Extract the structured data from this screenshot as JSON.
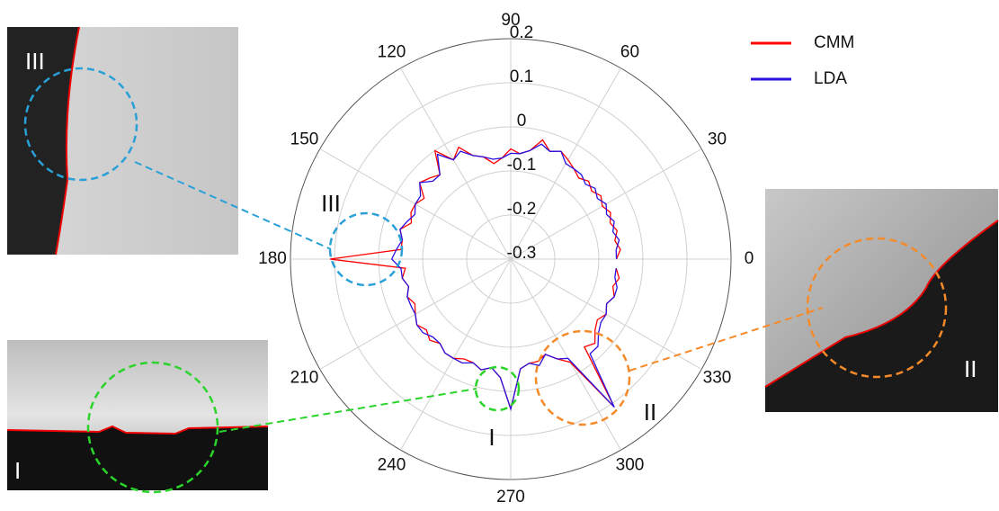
{
  "chart_data": {
    "type": "polar",
    "x": [
      0,
      5,
      10,
      15,
      20,
      25,
      30,
      35,
      40,
      45,
      50,
      55,
      60,
      65,
      70,
      75,
      80,
      85,
      90,
      95,
      100,
      105,
      110,
      115,
      120,
      125,
      130,
      135,
      140,
      145,
      150,
      155,
      160,
      165,
      170,
      175,
      180,
      185,
      190,
      195,
      200,
      205,
      210,
      215,
      220,
      225,
      230,
      235,
      240,
      245,
      250,
      255,
      260,
      265,
      270,
      275,
      280,
      285,
      290,
      295,
      300,
      305,
      310,
      315,
      320,
      325,
      330,
      335,
      340,
      345,
      350,
      355
    ],
    "series": [
      {
        "name": "CMM",
        "color": "#ff0000",
        "values": [
          -0.06,
          -0.05,
          -0.06,
          -0.05,
          -0.06,
          -0.05,
          -0.06,
          -0.05,
          -0.06,
          -0.05,
          -0.06,
          -0.05,
          -0.04,
          -0.03,
          -0.04,
          -0.02,
          -0.05,
          -0.06,
          -0.05,
          -0.07,
          -0.08,
          -0.06,
          -0.05,
          -0.02,
          -0.04,
          0.0,
          -0.05,
          -0.04,
          -0.03,
          -0.06,
          -0.05,
          -0.05,
          -0.06,
          -0.04,
          -0.05,
          -0.05,
          0.11,
          -0.06,
          -0.05,
          -0.06,
          -0.05,
          -0.06,
          -0.05,
          -0.04,
          -0.05,
          -0.04,
          -0.05,
          -0.04,
          -0.04,
          -0.05,
          -0.05,
          -0.04,
          -0.05,
          -0.03,
          0.04,
          -0.05,
          -0.06,
          -0.06,
          -0.07,
          -0.05,
          -0.03,
          0.11,
          -0.04,
          -0.03,
          -0.05,
          -0.06,
          -0.05,
          -0.06,
          -0.05,
          -0.06,
          -0.05,
          -0.06
        ]
      },
      {
        "name": "LDA",
        "color": "#2a10e0",
        "values": [
          -0.06,
          -0.06,
          -0.05,
          -0.06,
          -0.05,
          -0.06,
          -0.05,
          -0.06,
          -0.05,
          -0.06,
          -0.05,
          -0.05,
          -0.05,
          -0.03,
          -0.04,
          -0.03,
          -0.05,
          -0.06,
          -0.06,
          -0.07,
          -0.07,
          -0.06,
          -0.05,
          -0.03,
          -0.04,
          -0.01,
          -0.05,
          -0.05,
          -0.03,
          -0.05,
          -0.05,
          -0.06,
          -0.05,
          -0.04,
          -0.05,
          -0.04,
          -0.03,
          -0.05,
          -0.05,
          -0.06,
          -0.05,
          -0.05,
          -0.05,
          -0.04,
          -0.04,
          -0.05,
          -0.05,
          -0.04,
          -0.04,
          -0.04,
          -0.05,
          -0.04,
          -0.05,
          -0.03,
          0.04,
          -0.05,
          -0.06,
          -0.05,
          -0.07,
          -0.05,
          -0.04,
          0.11,
          -0.02,
          -0.02,
          -0.04,
          -0.05,
          -0.05,
          -0.06,
          -0.05,
          -0.05,
          -0.06,
          -0.06
        ]
      }
    ],
    "rlim": [
      -0.3,
      0.2
    ],
    "rticks": [
      -0.3,
      -0.2,
      -0.1,
      0,
      0.1,
      0.2
    ],
    "thetaticks": [
      0,
      30,
      60,
      90,
      120,
      150,
      180,
      210,
      240,
      270,
      300,
      330
    ],
    "grid": true,
    "annotations": [
      "I",
      "II",
      "III"
    ]
  }
}
